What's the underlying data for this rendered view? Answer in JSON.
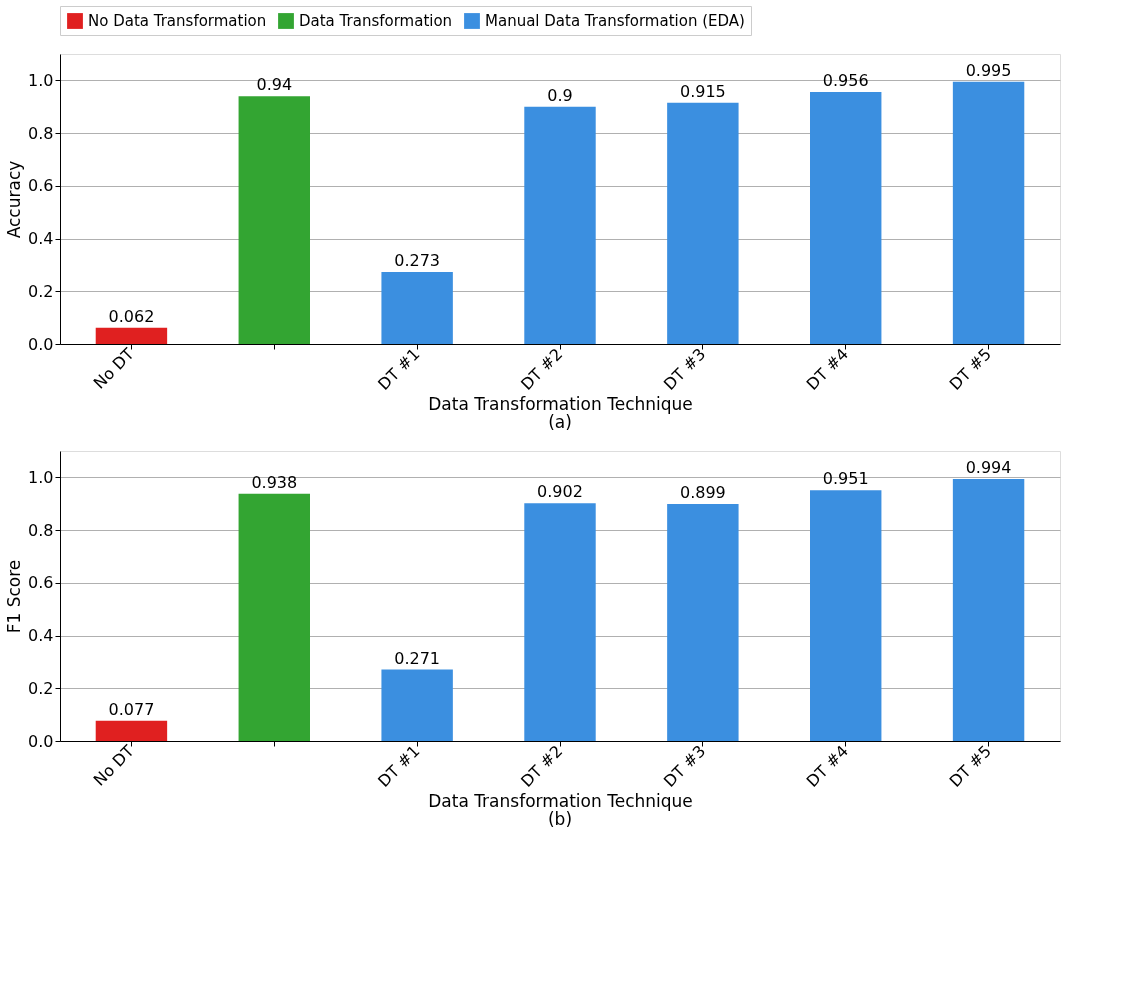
{
  "chart_data": [
    {
      "type": "bar",
      "xlabel": "Data Transformation Technique",
      "ylabel": "Accuracy",
      "annotations": [
        "(a)"
      ],
      "categories": [
        "No DT",
        null,
        "DT #1",
        "DT #2",
        "DT #3",
        "DT #4",
        "DT #5"
      ],
      "series": [
        {
          "name": "No Data Transformation",
          "color": "#e02020",
          "values": [
            0.062,
            null,
            null,
            null,
            null,
            null,
            null
          ]
        },
        {
          "name": "Data Transformation",
          "color": "#33a532",
          "values": [
            null,
            0.94,
            null,
            null,
            null,
            null,
            null
          ]
        },
        {
          "name": "Manual Data Transformation (EDA)",
          "color": "#3b8fe0",
          "values": [
            null,
            null,
            0.273,
            0.9,
            0.915,
            0.956,
            0.995
          ]
        }
      ],
      "ylim": [
        0,
        1.1
      ],
      "yticks": [
        {
          "value": 0,
          "label": "0.0"
        },
        {
          "value": 0.2,
          "label": "0.2"
        },
        {
          "value": 0.4,
          "label": "0.4"
        },
        {
          "value": 0.6,
          "label": "0.6"
        },
        {
          "value": 0.8,
          "label": "0.8"
        },
        {
          "value": 1,
          "label": "1.0"
        }
      ],
      "grid": "y",
      "data_labels": true,
      "legend": "top"
    },
    {
      "type": "bar",
      "xlabel": "Data Transformation Technique",
      "ylabel": "F1 Score",
      "annotations": [
        "(b)"
      ],
      "categories": [
        "No DT",
        null,
        "DT #1",
        "DT #2",
        "DT #3",
        "DT #4",
        "DT #5"
      ],
      "series": [
        {
          "color": "#e02020",
          "values": [
            0.077,
            null,
            null,
            null,
            null,
            null,
            null
          ]
        },
        {
          "color": "#33a532",
          "values": [
            null,
            0.938,
            null,
            null,
            null,
            null,
            null
          ]
        },
        {
          "color": "#3b8fe0",
          "values": [
            null,
            null,
            0.271,
            0.902,
            0.899,
            0.951,
            0.994
          ]
        }
      ],
      "ylim": [
        0,
        1.1
      ],
      "yticks": [
        {
          "value": 0,
          "label": "0.0"
        },
        {
          "value": 0.2,
          "label": "0.2"
        },
        {
          "value": 0.4,
          "label": "0.4"
        },
        {
          "value": 0.6,
          "label": "0.6"
        },
        {
          "value": 0.8,
          "label": "0.8"
        },
        {
          "value": 1,
          "label": "1.0"
        }
      ],
      "grid": "y",
      "data_labels": true,
      "legend": false
    }
  ]
}
